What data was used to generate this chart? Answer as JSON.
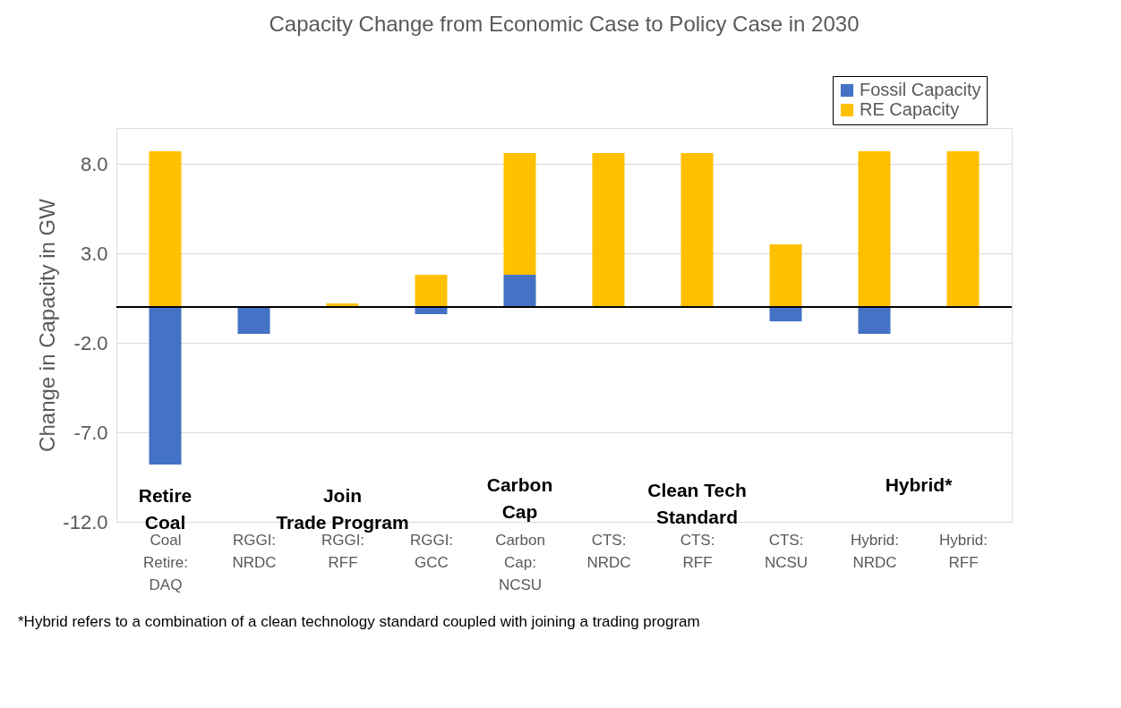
{
  "chart_data": {
    "type": "bar",
    "title": "Capacity Change from Economic Case to Policy Case in 2030",
    "ylabel": "Change in Capacity in GW",
    "categories": [
      "Coal Retire: DAQ",
      "RGGI: NRDC",
      "RGGI: RFF",
      "RGGI: GCC",
      "Carbon Cap: NCSU",
      "CTS: NRDC",
      "CTS: RFF",
      "CTS: NCSU",
      "Hybrid: NRDC",
      "Hybrid: RFF"
    ],
    "stacked": true,
    "series": [
      {
        "name": "Fossil Capacity",
        "color": "#4472c4",
        "values": [
          -8.8,
          -1.5,
          null,
          -0.4,
          1.8,
          null,
          null,
          -0.8,
          -1.5,
          null
        ]
      },
      {
        "name": "RE Capacity",
        "color": "#ffc000",
        "values": [
          8.7,
          null,
          0.2,
          1.8,
          6.8,
          8.6,
          8.6,
          3.5,
          8.7,
          8.7
        ]
      }
    ],
    "ylim": [
      -12,
      10
    ],
    "yticks": [
      {
        "value": 8,
        "label": "8.0"
      },
      {
        "value": 3,
        "label": "3.0"
      },
      {
        "value": -2,
        "label": "-2.0"
      },
      {
        "value": -7,
        "label": "-7.0"
      },
      {
        "value": -12,
        "label": "-12.0"
      }
    ],
    "ref_lines": [
      {
        "axis": "y",
        "value": 0,
        "color": "#000000"
      }
    ],
    "grid": "y",
    "legend": "top right",
    "annotations": [
      "Retire\nCoal",
      "Join\nTrade Program",
      "Carbon\nCap",
      "Clean Tech\nStandard",
      "Hybrid*",
      "*Hybrid refers to a combination of a clean technology standard coupled with joining a trading program"
    ]
  }
}
